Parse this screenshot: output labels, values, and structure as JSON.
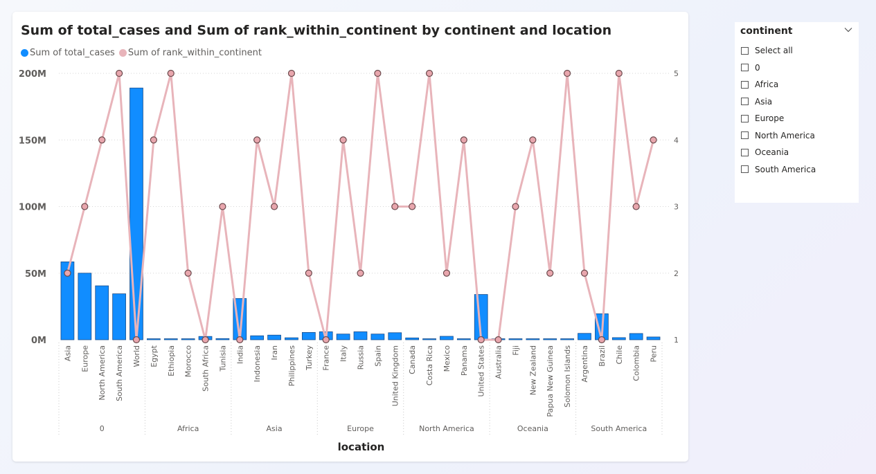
{
  "slicer": {
    "title": "continent",
    "items": [
      "Select all",
      "0",
      "Africa",
      "Asia",
      "Europe",
      "North America",
      "Oceania",
      "South America"
    ]
  },
  "colors": {
    "bar": "#118DFF",
    "bar_stroke": "#1a4d8a",
    "line": "#E8B4BA",
    "marker_fill": "#E8A6AD",
    "marker_stroke": "#6b4a4d"
  },
  "chart_data": {
    "type": "bar+line",
    "title": "Sum of total_cases and Sum of rank_within_continent by continent and location",
    "xlabel": "location",
    "legend": [
      "Sum of total_cases",
      "Sum of rank_within_continent"
    ],
    "y_left": {
      "ticks": [
        "200M",
        "150M",
        "100M",
        "50M",
        "0M"
      ],
      "range": [
        0,
        200000000
      ]
    },
    "y_right": {
      "ticks": [
        "5",
        "4",
        "3",
        "2",
        "1"
      ],
      "range": [
        1,
        5
      ]
    },
    "groups": [
      {
        "name": "0",
        "locations": [
          "Asia",
          "Europe",
          "North America",
          "South America",
          "World"
        ],
        "total_cases": [
          58500000,
          50000000,
          40500000,
          34500000,
          189000000
        ],
        "rank": [
          2,
          3,
          4,
          5,
          1
        ]
      },
      {
        "name": "Africa",
        "locations": [
          "Egypt",
          "Ethiopia",
          "Morocco",
          "South Africa",
          "Tunisia"
        ],
        "total_cases": [
          400000,
          350000,
          500000,
          2500000,
          900000
        ],
        "rank": [
          4,
          5,
          2,
          1,
          3
        ]
      },
      {
        "name": "Asia",
        "locations": [
          "India",
          "Indonesia",
          "Iran",
          "Philippines",
          "Turkey"
        ],
        "total_cases": [
          31000000,
          3000000,
          3500000,
          1500000,
          5500000
        ],
        "rank": [
          1,
          4,
          3,
          5,
          2
        ]
      },
      {
        "name": "Europe",
        "locations": [
          "France",
          "Italy",
          "Russia",
          "Spain",
          "United Kingdom"
        ],
        "total_cases": [
          6000000,
          4300000,
          6000000,
          4300000,
          5300000
        ],
        "rank": [
          1,
          4,
          2,
          5,
          3
        ]
      },
      {
        "name": "North America",
        "locations": [
          "Canada",
          "Costa Rica",
          "Mexico",
          "Panama",
          "United States"
        ],
        "total_cases": [
          1400000,
          400000,
          2600000,
          400000,
          34000000
        ],
        "rank": [
          3,
          5,
          2,
          4,
          1
        ]
      },
      {
        "name": "Oceania",
        "locations": [
          "Australia",
          "Fiji",
          "New Zealand",
          "Papua New Guinea",
          "Solomon Islands"
        ],
        "total_cases": [
          50000,
          30000,
          3000,
          20000,
          100
        ],
        "rank": [
          1,
          3,
          4,
          2,
          5
        ]
      },
      {
        "name": "South America",
        "locations": [
          "Argentina",
          "Brazil",
          "Chile",
          "Colombia",
          "Peru"
        ],
        "total_cases": [
          4800000,
          19500000,
          1600000,
          4700000,
          2100000
        ],
        "rank": [
          2,
          1,
          5,
          3,
          4
        ]
      }
    ]
  }
}
